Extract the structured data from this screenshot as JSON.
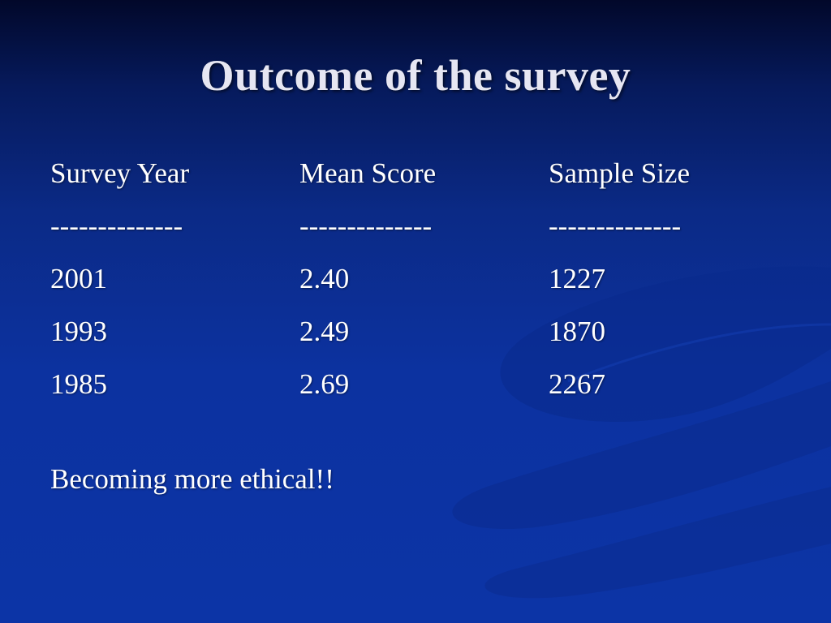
{
  "slide": {
    "title": "Outcome of  the survey",
    "table": {
      "headers": [
        "Survey Year",
        "Mean Score",
        "Sample Size"
      ],
      "separators": [
        "--------------",
        "--------------",
        "--------------"
      ],
      "rows": [
        [
          "2001",
          "2.40",
          "1227"
        ],
        [
          "1993",
          "2.49",
          "1870"
        ],
        [
          "1985",
          "2.69",
          "2267"
        ]
      ]
    },
    "conclusion": "Becoming more ethical!!"
  },
  "colors": {
    "background_top": "#02082a",
    "background_bottom": "#0c34a6",
    "title_text": "#e6e6f2",
    "body_text": "#ffffff"
  }
}
